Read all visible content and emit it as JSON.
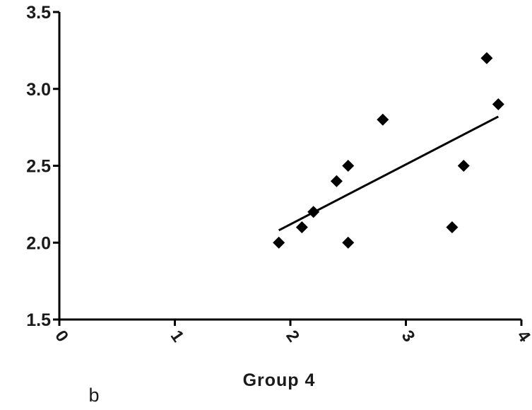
{
  "chart_data": {
    "type": "scatter",
    "title": "",
    "xlabel": "Group 4",
    "ylabel": "",
    "panel_label": "b",
    "xlim": [
      0,
      4
    ],
    "ylim": [
      1.5,
      3.5
    ],
    "x_ticks": [
      0,
      1,
      2,
      3,
      4
    ],
    "x_tick_labels": [
      "0",
      "1",
      "2",
      "3",
      "4"
    ],
    "y_ticks": [
      1.5,
      2.0,
      2.5,
      3.0,
      3.5
    ],
    "y_tick_labels": [
      "1.5",
      "2.0",
      "2.5",
      "3.0",
      "3.5"
    ],
    "grid": false,
    "series": [
      {
        "points": [
          {
            "x": 1.9,
            "y": 2.0
          },
          {
            "x": 2.1,
            "y": 2.1
          },
          {
            "x": 2.2,
            "y": 2.2
          },
          {
            "x": 2.4,
            "y": 2.4
          },
          {
            "x": 2.5,
            "y": 2.5
          },
          {
            "x": 2.5,
            "y": 2.0
          },
          {
            "x": 2.8,
            "y": 2.8
          },
          {
            "x": 3.4,
            "y": 2.1
          },
          {
            "x": 3.5,
            "y": 2.5
          },
          {
            "x": 3.7,
            "y": 3.2
          },
          {
            "x": 3.8,
            "y": 2.9
          }
        ],
        "marker": "diamond",
        "color": "#000000"
      }
    ],
    "trendline": {
      "x": [
        1.9,
        3.8
      ],
      "y": [
        2.08,
        2.82
      ],
      "color": "#000000"
    }
  }
}
